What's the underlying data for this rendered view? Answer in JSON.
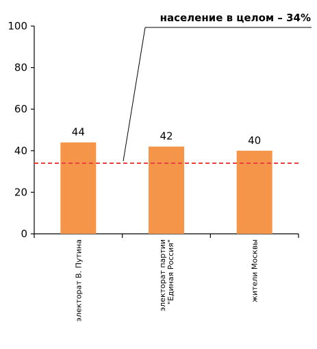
{
  "chart_data": {
    "type": "bar",
    "categories": [
      [
        "электорат В. Путина"
      ],
      [
        "электорат партии",
        "\"Единая Россия\""
      ],
      [
        "жители Москвы"
      ]
    ],
    "values": [
      44,
      42,
      40
    ],
    "value_labels": [
      "44",
      "42",
      "40"
    ],
    "ylim": [
      0,
      100
    ],
    "yticks": [
      0,
      20,
      40,
      60,
      80,
      100
    ],
    "ytick_labels": [
      "0",
      "20",
      "40",
      "60",
      "80",
      "100"
    ],
    "reference_line": {
      "value": 34,
      "label": "население в целом – 34%",
      "style": "dashed",
      "color": "#e8413f"
    },
    "bar_color": "#f5954a",
    "grid": false,
    "legend": "none"
  }
}
